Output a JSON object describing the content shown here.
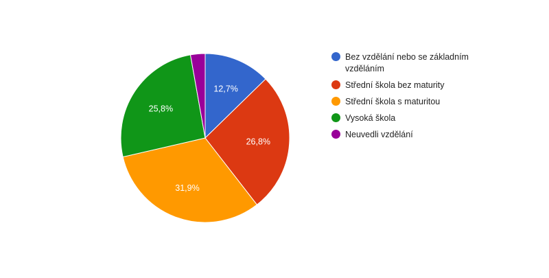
{
  "chart_data": {
    "type": "pie",
    "title": "",
    "legend_position": "right",
    "slices": [
      {
        "label": "Bez vzdělání nebo se základním vzděláním",
        "value": 12.7,
        "value_label": "12,7%",
        "color": "#3366cc"
      },
      {
        "label": "Střední škola bez maturity",
        "value": 26.8,
        "value_label": "26,8%",
        "color": "#dc3912"
      },
      {
        "label": "Střední škola s maturitou",
        "value": 31.9,
        "value_label": "31,9%",
        "color": "#ff9900"
      },
      {
        "label": "Vysoká škola",
        "value": 25.8,
        "value_label": "25,8%",
        "color": "#109618"
      },
      {
        "label": "Neuvedli vzdělání",
        "value": 2.8,
        "value_label": "",
        "color": "#990099"
      }
    ]
  }
}
